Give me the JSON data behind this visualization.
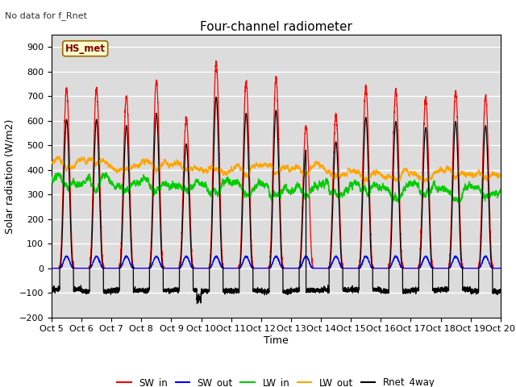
{
  "title": "Four-channel radiometer",
  "top_left_text": "No data for f_Rnet",
  "station_label": "HS_met",
  "ylabel": "Solar radiation (W/m2)",
  "xlabel": "Time",
  "xlim": [
    0,
    15
  ],
  "ylim": [
    -200,
    950
  ],
  "yticks": [
    -200,
    -100,
    0,
    100,
    200,
    300,
    400,
    500,
    600,
    700,
    800,
    900
  ],
  "xtick_labels": [
    "Oct 5",
    "Oct 6",
    "Oct 7",
    "Oct 8",
    "Oct 9",
    "Oct 10",
    "Oct 11",
    "Oct 12",
    "Oct 13",
    "Oct 14",
    "Oct 15",
    "Oct 16",
    "Oct 17",
    "Oct 18",
    "Oct 19",
    "Oct 20"
  ],
  "colors": {
    "SW_in": "#ff0000",
    "SW_out": "#0000ff",
    "LW_in": "#00cc00",
    "LW_out": "#ffa500",
    "Rnet_4way": "#000000"
  },
  "bg_color": "#dcdcdc",
  "grid_color": "#ffffff",
  "legend_entries": [
    "SW_in",
    "SW_out",
    "LW_in",
    "LW_out",
    "Rnet_4way"
  ]
}
